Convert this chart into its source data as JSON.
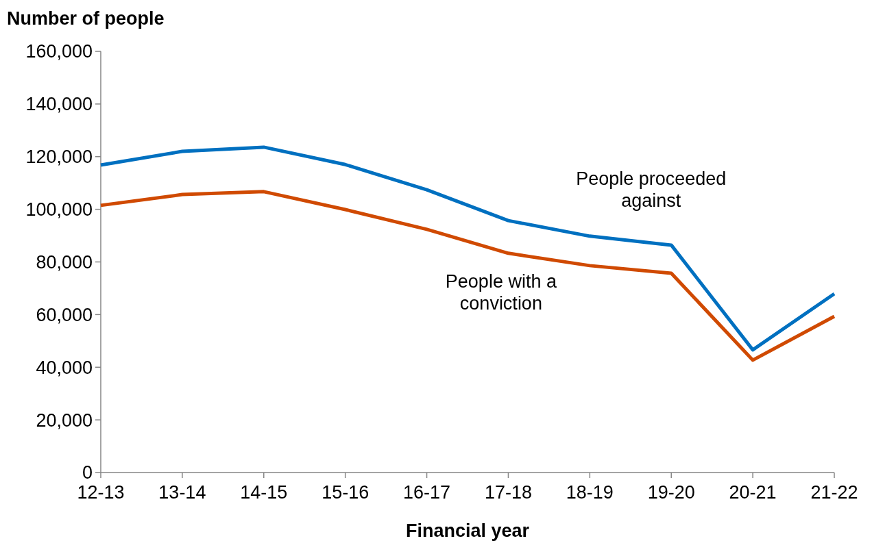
{
  "chart_data": {
    "type": "line",
    "ylabel": "Number of people",
    "xlabel": "Financial year",
    "categories": [
      "12-13",
      "13-14",
      "14-15",
      "15-16",
      "16-17",
      "17-18",
      "18-19",
      "19-20",
      "20-21",
      "21-22"
    ],
    "series": [
      {
        "name": "People proceeded against",
        "color": "#0070c0",
        "values": [
          116800,
          122000,
          123600,
          117000,
          107400,
          95700,
          89800,
          86400,
          46600,
          67900
        ]
      },
      {
        "name": "People with a conviction",
        "color": "#d04a02",
        "values": [
          101500,
          105600,
          106700,
          99900,
          92400,
          83300,
          78600,
          75700,
          42700,
          59300
        ]
      }
    ],
    "ylim": [
      0,
      160000
    ],
    "yticks": [
      {
        "value": 0,
        "label": "0"
      },
      {
        "value": 20000,
        "label": "20,000"
      },
      {
        "value": 40000,
        "label": "40,000"
      },
      {
        "value": 60000,
        "label": "60,000"
      },
      {
        "value": 80000,
        "label": "80,000"
      },
      {
        "value": 100000,
        "label": "100,000"
      },
      {
        "value": 120000,
        "label": "120,000"
      },
      {
        "value": 140000,
        "label": "140,000"
      },
      {
        "value": 160000,
        "label": "160,000"
      }
    ],
    "grid": false,
    "marker": "none",
    "line_style": "solid"
  }
}
